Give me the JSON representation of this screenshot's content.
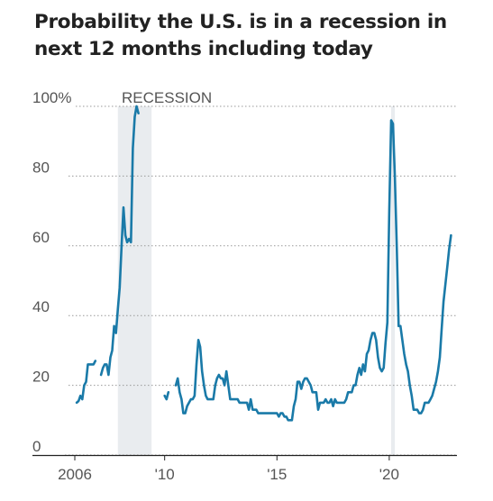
{
  "chart_data": {
    "type": "line",
    "title": "Probability the U.S. is in a recession in next 12 months including today",
    "xlabel": "",
    "ylabel": "",
    "ylim": [
      0,
      100
    ],
    "xlim": [
      "2005-07",
      "2022-12"
    ],
    "y_ticks": [
      0,
      20,
      40,
      60,
      80,
      100
    ],
    "y_tick_labels": [
      "0",
      "20",
      "40",
      "60",
      "80",
      "100%"
    ],
    "x_ticks": [
      2006,
      2010,
      2015,
      2020
    ],
    "x_tick_labels": [
      "2006",
      "'10",
      "'15",
      "'20"
    ],
    "grid": "horizontal dotted",
    "colors": {
      "line": "#1a7aa8",
      "shading": "#e9ecef",
      "text": "#222222",
      "axis_text": "#555555"
    },
    "recession_label": "RECESSION",
    "recessions": [
      {
        "start": "2007-12",
        "end": "2009-06"
      },
      {
        "start": "2020-02",
        "end": "2020-04"
      }
    ],
    "series": [
      {
        "segments": [
          [
            [
              "2006-02",
              15
            ],
            [
              "2006-03",
              15.5
            ],
            [
              "2006-04",
              17
            ],
            [
              "2006-05",
              16
            ],
            [
              "2006-06",
              20
            ],
            [
              "2006-07",
              21
            ],
            [
              "2006-08",
              26
            ],
            [
              "2006-09",
              26
            ],
            [
              "2006-10",
              26
            ],
            [
              "2006-11",
              26
            ],
            [
              "2006-12",
              27
            ]
          ],
          [
            [
              "2007-03",
              23
            ],
            [
              "2007-04",
              25
            ],
            [
              "2007-05",
              26
            ],
            [
              "2007-06",
              26
            ],
            [
              "2007-07",
              23
            ],
            [
              "2007-08",
              28
            ],
            [
              "2007-09",
              30
            ],
            [
              "2007-10",
              37
            ],
            [
              "2007-11",
              35
            ],
            [
              "2007-12",
              42
            ],
            [
              "2008-01",
              48
            ],
            [
              "2008-02",
              60
            ],
            [
              "2008-03",
              71
            ],
            [
              "2008-04",
              63
            ],
            [
              "2008-05",
              61
            ],
            [
              "2008-06",
              62
            ],
            [
              "2008-07",
              61
            ],
            [
              "2008-08",
              88
            ],
            [
              "2008-09",
              97
            ],
            [
              "2008-10",
              100
            ],
            [
              "2008-11",
              98
            ]
          ],
          [
            [
              "2010-01",
              17
            ],
            [
              "2010-02",
              16
            ],
            [
              "2010-03",
              18
            ]
          ],
          [
            [
              "2010-07",
              20
            ],
            [
              "2010-08",
              22
            ],
            [
              "2010-09",
              18
            ],
            [
              "2010-10",
              16
            ],
            [
              "2010-11",
              12
            ],
            [
              "2010-12",
              12
            ],
            [
              "2011-01",
              14
            ],
            [
              "2011-02",
              15
            ],
            [
              "2011-03",
              16
            ],
            [
              "2011-04",
              16
            ],
            [
              "2011-05",
              17
            ],
            [
              "2011-06",
              26
            ],
            [
              "2011-07",
              33
            ],
            [
              "2011-08",
              31
            ],
            [
              "2011-09",
              24
            ],
            [
              "2011-10",
              20
            ],
            [
              "2011-11",
              17
            ],
            [
              "2011-12",
              16
            ],
            [
              "2012-01",
              16
            ],
            [
              "2012-02",
              16
            ],
            [
              "2012-03",
              16
            ],
            [
              "2012-04",
              20
            ],
            [
              "2012-05",
              22
            ],
            [
              "2012-06",
              23
            ],
            [
              "2012-07",
              22
            ],
            [
              "2012-08",
              22
            ],
            [
              "2012-09",
              20
            ],
            [
              "2012-10",
              24
            ],
            [
              "2012-11",
              20
            ],
            [
              "2012-12",
              16
            ],
            [
              "2013-01",
              16
            ],
            [
              "2013-02",
              16
            ],
            [
              "2013-03",
              16
            ],
            [
              "2013-04",
              16
            ],
            [
              "2013-05",
              15
            ],
            [
              "2013-06",
              15
            ],
            [
              "2013-07",
              15
            ],
            [
              "2013-08",
              15
            ],
            [
              "2013-09",
              15
            ],
            [
              "2013-10",
              13
            ],
            [
              "2013-11",
              16
            ],
            [
              "2013-12",
              13
            ],
            [
              "2014-01",
              13
            ],
            [
              "2014-02",
              13
            ],
            [
              "2014-03",
              12
            ],
            [
              "2014-04",
              12
            ],
            [
              "2014-05",
              12
            ],
            [
              "2014-06",
              12
            ],
            [
              "2014-07",
              12
            ],
            [
              "2014-08",
              12
            ],
            [
              "2014-09",
              12
            ],
            [
              "2014-10",
              12
            ],
            [
              "2014-11",
              12
            ],
            [
              "2014-12",
              12
            ],
            [
              "2015-01",
              12
            ],
            [
              "2015-02",
              11
            ],
            [
              "2015-03",
              12
            ],
            [
              "2015-04",
              12
            ],
            [
              "2015-05",
              11
            ],
            [
              "2015-06",
              11
            ],
            [
              "2015-07",
              10
            ],
            [
              "2015-08",
              10
            ],
            [
              "2015-09",
              10
            ],
            [
              "2015-10",
              14
            ],
            [
              "2015-11",
              16
            ],
            [
              "2015-12",
              21
            ],
            [
              "2016-01",
              21
            ],
            [
              "2016-02",
              19
            ],
            [
              "2016-03",
              21
            ],
            [
              "2016-04",
              22
            ],
            [
              "2016-05",
              22
            ],
            [
              "2016-06",
              21
            ],
            [
              "2016-07",
              20
            ],
            [
              "2016-08",
              18
            ],
            [
              "2016-09",
              18
            ],
            [
              "2016-10",
              18
            ],
            [
              "2016-11",
              13
            ],
            [
              "2016-12",
              15
            ],
            [
              "2017-01",
              15
            ],
            [
              "2017-02",
              15
            ],
            [
              "2017-03",
              16
            ],
            [
              "2017-04",
              15
            ],
            [
              "2017-05",
              15
            ],
            [
              "2017-06",
              16
            ],
            [
              "2017-07",
              14
            ],
            [
              "2017-08",
              16
            ],
            [
              "2017-09",
              15
            ],
            [
              "2017-10",
              15
            ],
            [
              "2017-11",
              15
            ],
            [
              "2017-12",
              15
            ],
            [
              "2018-01",
              15
            ],
            [
              "2018-02",
              16
            ],
            [
              "2018-03",
              18
            ],
            [
              "2018-04",
              18
            ],
            [
              "2018-05",
              18
            ],
            [
              "2018-06",
              20
            ],
            [
              "2018-07",
              20
            ],
            [
              "2018-08",
              23
            ],
            [
              "2018-09",
              25
            ],
            [
              "2018-10",
              23
            ],
            [
              "2018-11",
              26
            ],
            [
              "2018-12",
              24
            ],
            [
              "2019-01",
              29
            ],
            [
              "2019-02",
              30
            ],
            [
              "2019-03",
              33
            ],
            [
              "2019-04",
              35
            ],
            [
              "2019-05",
              35
            ],
            [
              "2019-06",
              33
            ],
            [
              "2019-07",
              28
            ],
            [
              "2019-08",
              25
            ],
            [
              "2019-09",
              24
            ],
            [
              "2019-10",
              25
            ],
            [
              "2019-11",
              32
            ],
            [
              "2019-12",
              38
            ],
            [
              "2020-01",
              70
            ],
            [
              "2020-02",
              96
            ],
            [
              "2020-03",
              95
            ],
            [
              "2020-04",
              80
            ],
            [
              "2020-05",
              60
            ],
            [
              "2020-06",
              37
            ],
            [
              "2020-07",
              37
            ],
            [
              "2020-08",
              33
            ],
            [
              "2020-09",
              29
            ],
            [
              "2020-10",
              26
            ],
            [
              "2020-11",
              24
            ],
            [
              "2020-12",
              20
            ],
            [
              "2021-01",
              17
            ],
            [
              "2021-02",
              13
            ],
            [
              "2021-03",
              13
            ],
            [
              "2021-04",
              13
            ],
            [
              "2021-05",
              12
            ],
            [
              "2021-06",
              12
            ],
            [
              "2021-07",
              13
            ],
            [
              "2021-08",
              15
            ],
            [
              "2021-09",
              15
            ],
            [
              "2021-10",
              15
            ],
            [
              "2021-11",
              16
            ],
            [
              "2021-12",
              17
            ],
            [
              "2022-01",
              19
            ],
            [
              "2022-02",
              21
            ],
            [
              "2022-03",
              24
            ],
            [
              "2022-04",
              28
            ],
            [
              "2022-05",
              36
            ],
            [
              "2022-06",
              44
            ],
            [
              "2022-07",
              49
            ],
            [
              "2022-08",
              54
            ],
            [
              "2022-09",
              59
            ],
            [
              "2022-10",
              63
            ]
          ]
        ]
      }
    ]
  }
}
